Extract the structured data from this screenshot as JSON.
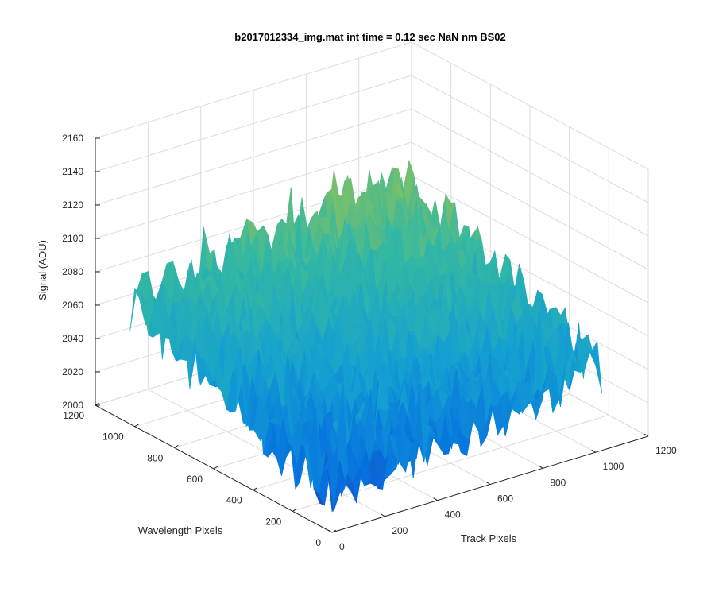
{
  "chart_data": {
    "type": "surface",
    "title": "b2017012334_img.mat int time = 0.12 sec  NaN nm BS02",
    "xlabel": "Track Pixels",
    "ylabel": "Wavelength Pixels",
    "zlabel": "Signal (ADU)",
    "xlim": [
      0,
      1200
    ],
    "ylim": [
      0,
      1200
    ],
    "zlim": [
      2000,
      2160
    ],
    "x_ticks": [
      "0",
      "200",
      "400",
      "600",
      "800",
      "1000",
      "1200"
    ],
    "y_ticks": [
      "0",
      "200",
      "400",
      "600",
      "800",
      "1000",
      "1200"
    ],
    "z_ticks": [
      "2000",
      "2020",
      "2040",
      "2060",
      "2080",
      "2100",
      "2120",
      "2140",
      "2160"
    ],
    "grid": true,
    "colormap": "parula",
    "colors": {
      "low": "#0a6ee0",
      "mid": "#1fb6b0",
      "high": "#e8c23a",
      "grid": "#dcdcdc",
      "axis": "#262626"
    }
  }
}
